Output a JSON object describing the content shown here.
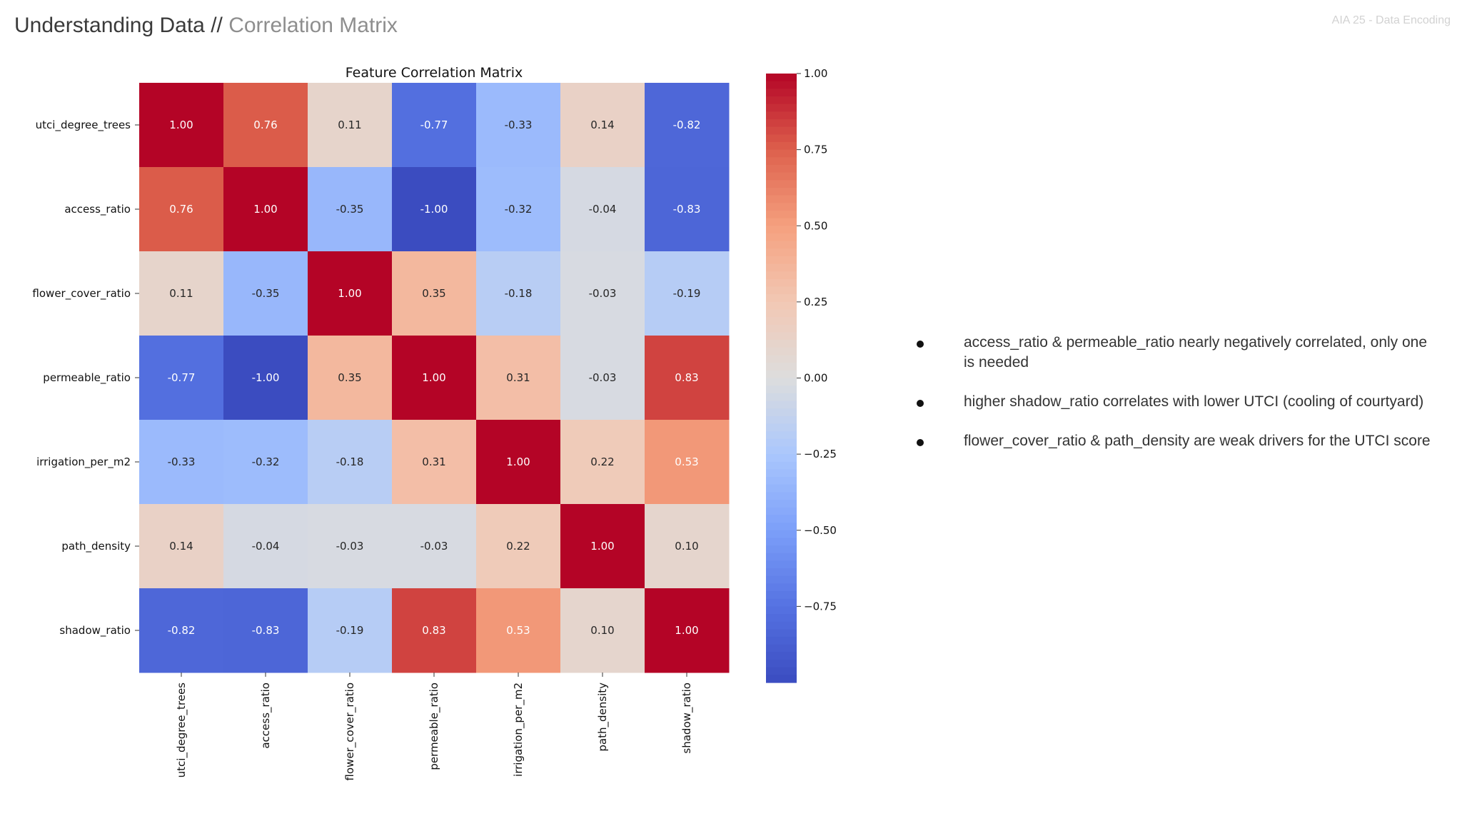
{
  "header": {
    "title_main": "Understanding Data",
    "title_separator": "//",
    "title_sub": "Correlation Matrix",
    "tag": "AIA 25 - Data Encoding"
  },
  "chart_data": {
    "type": "heatmap",
    "title": "Feature Correlation Matrix",
    "rows": [
      "utci_degree_trees",
      "access_ratio",
      "flower_cover_ratio",
      "permeable_ratio",
      "irrigation_per_m2",
      "path_density",
      "shadow_ratio"
    ],
    "columns": [
      "utci_degree_trees",
      "access_ratio",
      "flower_cover_ratio",
      "permeable_ratio",
      "irrigation_per_m2",
      "path_density",
      "shadow_ratio"
    ],
    "values": [
      [
        1.0,
        0.76,
        0.11,
        -0.77,
        -0.33,
        0.14,
        -0.82
      ],
      [
        0.76,
        1.0,
        -0.35,
        -1.0,
        -0.32,
        -0.04,
        -0.83
      ],
      [
        0.11,
        -0.35,
        1.0,
        0.35,
        -0.18,
        -0.03,
        -0.19
      ],
      [
        -0.77,
        -1.0,
        0.35,
        1.0,
        0.31,
        -0.03,
        0.83
      ],
      [
        -0.33,
        -0.32,
        -0.18,
        0.31,
        1.0,
        0.22,
        0.53
      ],
      [
        0.14,
        -0.04,
        -0.03,
        -0.03,
        0.22,
        1.0,
        0.1
      ],
      [
        -0.82,
        -0.83,
        -0.19,
        0.83,
        0.53,
        0.1,
        1.0
      ]
    ],
    "colormap": "coolwarm",
    "vmin": -1.0,
    "vmax": 1.0,
    "colorbar_ticks": [
      1.0,
      0.75,
      0.5,
      0.25,
      0.0,
      -0.25,
      -0.5,
      -0.75
    ],
    "colorbar_tick_labels": [
      "1.00",
      "0.75",
      "0.50",
      "0.25",
      "0.00",
      "−0.25",
      "−0.50",
      "−0.75"
    ],
    "annotations_format": "0.00",
    "colors": {
      "low": "#3b4cc0",
      "mid": "#dddddd",
      "high": "#b40426"
    }
  },
  "notes": [
    "access_ratio & permeable_ratio nearly negatively correlated, only one is needed",
    "higher shadow_ratio correlates with lower UTCI (cooling of courtyard)",
    "flower_cover_ratio & path_density are weak drivers for the UTCI score"
  ]
}
